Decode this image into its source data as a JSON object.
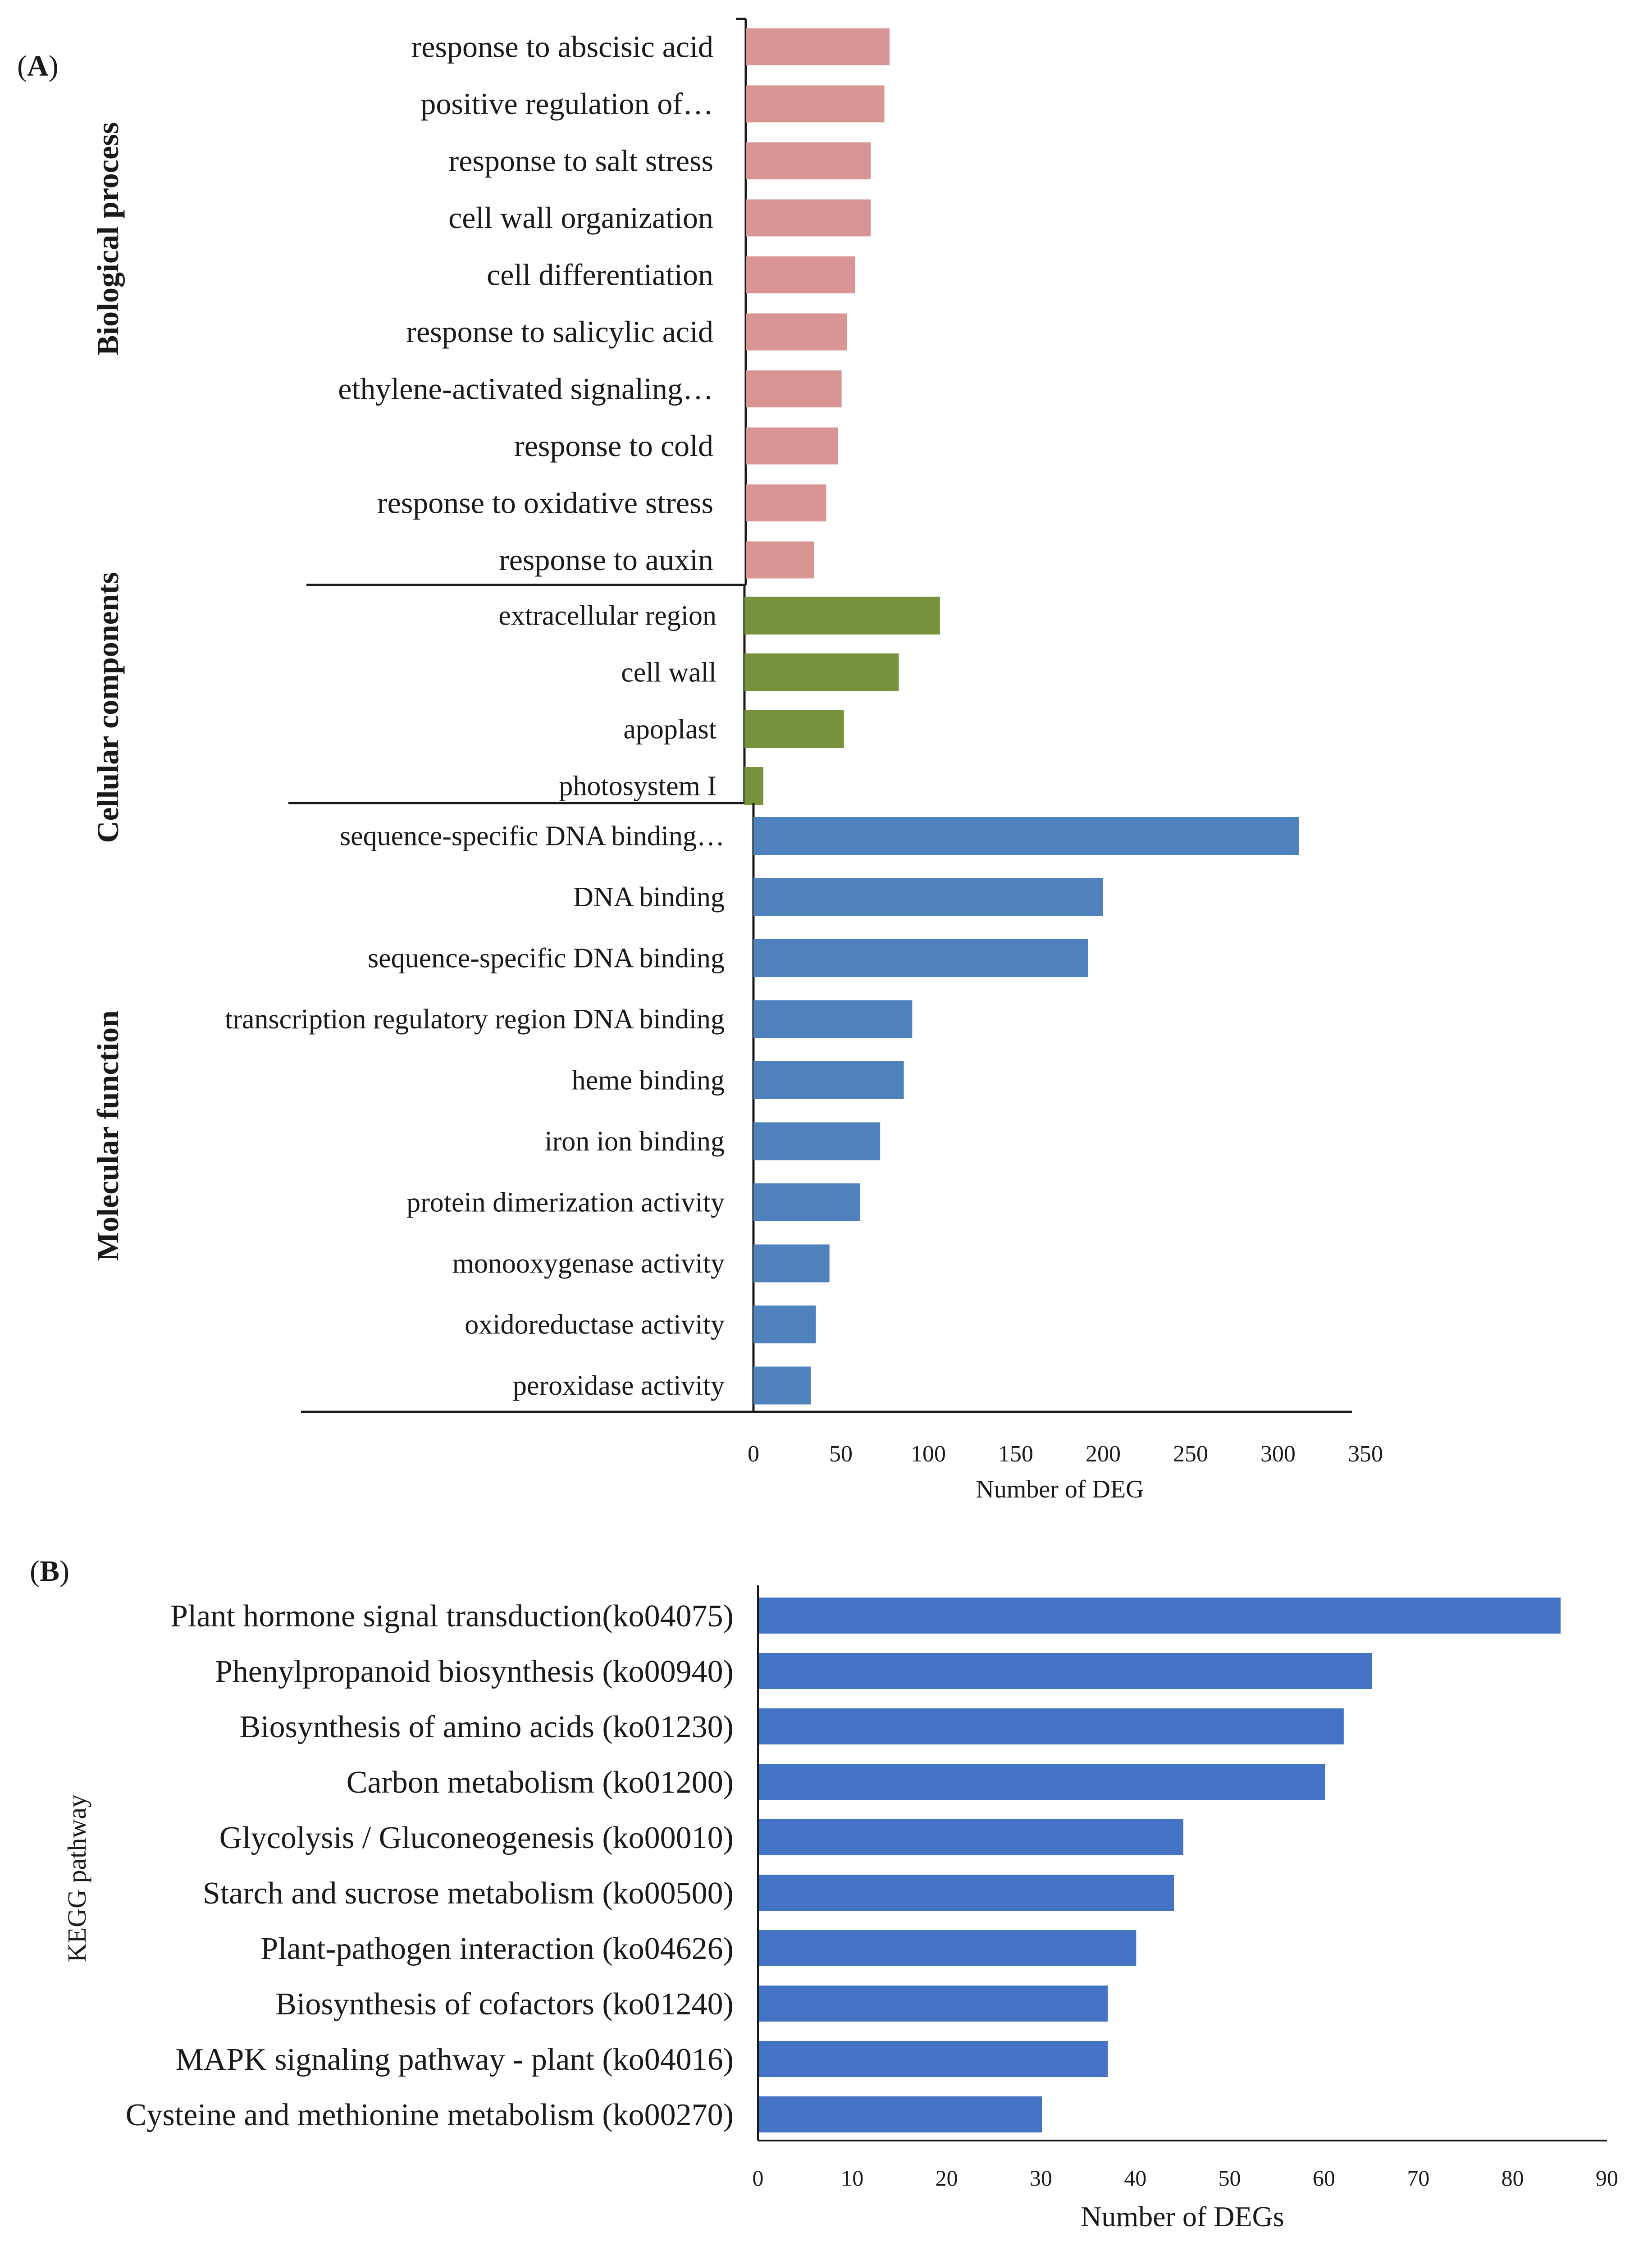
{
  "chart_data": [
    {
      "panel_label": "(A)",
      "panel_letter": "A",
      "type": "bar",
      "orientation": "horizontal",
      "xlabel": "Number of DEG",
      "xlim": [
        0,
        350
      ],
      "xticks": [
        0,
        50,
        100,
        150,
        200,
        250,
        300,
        350
      ],
      "grid": false,
      "groups": [
        {
          "name": "Biological process",
          "color": "#D99594",
          "categories": [
            "response to abscisic acid",
            "positive regulation of…",
            "response to salt stress",
            "cell wall organization",
            "cell differentiation",
            "response to salicylic acid",
            "ethylene-activated signaling…",
            "response to cold",
            "response to oxidative stress",
            "response to auxin"
          ],
          "values": [
            84,
            81,
            73,
            73,
            64,
            59,
            56,
            54,
            47,
            40
          ]
        },
        {
          "name": "Cellular components",
          "color": "#77933C",
          "categories": [
            "extracellular region",
            "cell wall",
            "apoplast",
            "photosystem I"
          ],
          "values": [
            114,
            90,
            58,
            11
          ]
        },
        {
          "name": "Molecular function",
          "color": "#4F81BD",
          "categories": [
            "sequence-specific DNA binding…",
            "DNA binding",
            "sequence-specific DNA binding",
            "transcription regulatory region DNA binding",
            "heme binding",
            "iron ion binding",
            "protein dimerization activity",
            "monooxygenase activity",
            "oxidoreductase activity",
            "peroxidase activity"
          ],
          "values": [
            323,
            207,
            198,
            94,
            89,
            75,
            63,
            45,
            37,
            34
          ]
        }
      ]
    },
    {
      "panel_label": "(B)",
      "panel_letter": "B",
      "type": "bar",
      "orientation": "horizontal",
      "xlabel": "Number of DEGs",
      "ylabel": "KEGG pathway",
      "xlim": [
        0,
        90
      ],
      "xticks": [
        0,
        10,
        20,
        30,
        40,
        50,
        60,
        70,
        80,
        90
      ],
      "grid": false,
      "color": "#4472C4",
      "categories": [
        "Plant hormone signal transduction(ko04075)",
        "Phenylpropanoid biosynthesis (ko00940)",
        "Biosynthesis of amino acids (ko01230)",
        "Carbon metabolism (ko01200)",
        "Glycolysis / Gluconeogenesis (ko00010)",
        "Starch and sucrose metabolism (ko00500)",
        "Plant-pathogen interaction (ko04626)",
        "Biosynthesis of cofactors (ko01240)",
        "MAPK signaling pathway - plant (ko04016)",
        "Cysteine and methionine metabolism (ko00270)"
      ],
      "values": [
        85,
        65,
        62,
        60,
        45,
        44,
        40,
        37,
        37,
        30
      ]
    }
  ]
}
